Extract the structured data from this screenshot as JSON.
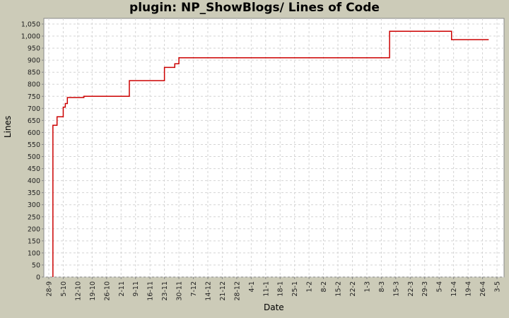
{
  "chart_data": {
    "type": "line",
    "subtype": "step",
    "title": "plugin: NP_ShowBlogs/ Lines of Code",
    "xlabel": "Date",
    "ylabel": "Lines",
    "ylim": [
      0,
      1075
    ],
    "yticks": [
      0,
      50,
      100,
      150,
      200,
      250,
      300,
      350,
      400,
      450,
      500,
      550,
      600,
      650,
      700,
      750,
      800,
      850,
      900,
      950,
      1000,
      1050
    ],
    "ytick_labels": [
      "0",
      "50",
      "100",
      "150",
      "200",
      "250",
      "300",
      "350",
      "400",
      "450",
      "500",
      "550",
      "600",
      "650",
      "700",
      "750",
      "800",
      "850",
      "900",
      "950",
      "1,000",
      "1,050"
    ],
    "xtick_labels": [
      "28-9",
      "5-10",
      "12-10",
      "19-10",
      "26-10",
      "2-11",
      "9-11",
      "16-11",
      "23-11",
      "30-11",
      "7-12",
      "14-12",
      "21-12",
      "28-12",
      "4-1",
      "11-1",
      "18-1",
      "25-1",
      "1-2",
      "8-2",
      "15-2",
      "22-2",
      "1-3",
      "8-3",
      "15-3",
      "22-3",
      "29-3",
      "5-4",
      "12-4",
      "19-4",
      "26-4",
      "3-5"
    ],
    "grid": true,
    "legend": "none",
    "line_color": "#cc0000",
    "series": [
      {
        "name": "Lines",
        "points": [
          {
            "x": "30-9",
            "y": 0
          },
          {
            "x": "30-9",
            "y": 630
          },
          {
            "x": "2-10",
            "y": 665
          },
          {
            "x": "5-10",
            "y": 668
          },
          {
            "x": "5-10",
            "y": 705
          },
          {
            "x": "6-10",
            "y": 720
          },
          {
            "x": "7-10",
            "y": 745
          },
          {
            "x": "15-10",
            "y": 750
          },
          {
            "x": "6-11",
            "y": 815
          },
          {
            "x": "23-11",
            "y": 870
          },
          {
            "x": "28-11",
            "y": 885
          },
          {
            "x": "30-11",
            "y": 910
          },
          {
            "x": "12-3",
            "y": 910
          },
          {
            "x": "12-3",
            "y": 1020
          },
          {
            "x": "11-4",
            "y": 1020
          },
          {
            "x": "11-4",
            "y": 985
          },
          {
            "x": "29-4",
            "y": 985
          }
        ]
      }
    ]
  },
  "colors": {
    "background": "#cccbb8",
    "plot_background": "#ffffff",
    "grid": "#d4d4d4",
    "line": "#cc0000"
  }
}
